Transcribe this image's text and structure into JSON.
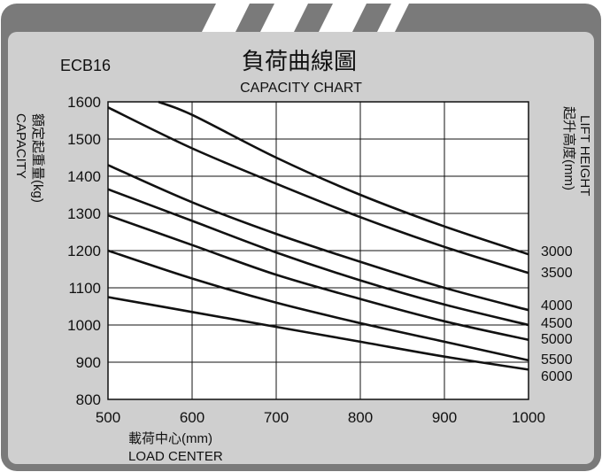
{
  "model": "ECB16",
  "title_cn": "負荷曲線圖",
  "title_en": "CAPACITY CHART",
  "ylabel_cn": "額定起重量(kg)",
  "ylabel_en": "CAPACITY",
  "xlabel_cn": "載荷中心(mm)",
  "xlabel_en": "LOAD CENTER",
  "right_label_en": "LIFT HEIGHT",
  "right_label_cn": "起升高度(mm)",
  "colors": {
    "frame": "#7a7a7a",
    "panel": "#cfcfcf",
    "plot_bg": "#ffffff",
    "line": "#111111",
    "stripe": "#ffffff"
  },
  "chart_data": {
    "type": "line",
    "title": "負荷曲線圖",
    "subtitle": "CAPACITY CHART",
    "xlabel": "載荷中心(mm)",
    "ylabel": "額定起重量(kg)",
    "xlim": [
      500,
      1000
    ],
    "ylim": [
      800,
      1600
    ],
    "x_ticks": [
      500,
      600,
      700,
      800,
      900,
      1000
    ],
    "y_ticks": [
      800,
      900,
      1000,
      1100,
      1200,
      1300,
      1400,
      1500,
      1600
    ],
    "grid": true,
    "series": [
      {
        "name": "3000",
        "x": [
          560,
          600,
          700,
          800,
          900,
          1000
        ],
        "y": [
          1600,
          1565,
          1450,
          1350,
          1265,
          1190
        ]
      },
      {
        "name": "3500",
        "x": [
          500,
          600,
          700,
          800,
          900,
          1000
        ],
        "y": [
          1585,
          1475,
          1380,
          1290,
          1210,
          1140
        ]
      },
      {
        "name": "4000",
        "x": [
          500,
          600,
          700,
          800,
          900,
          1000
        ],
        "y": [
          1430,
          1330,
          1245,
          1170,
          1100,
          1040
        ]
      },
      {
        "name": "4500",
        "x": [
          500,
          600,
          700,
          800,
          900,
          1000
        ],
        "y": [
          1365,
          1280,
          1195,
          1120,
          1055,
          1000
        ]
      },
      {
        "name": "5000",
        "x": [
          500,
          600,
          700,
          800,
          900,
          1000
        ],
        "y": [
          1295,
          1215,
          1135,
          1070,
          1010,
          960
        ]
      },
      {
        "name": "5500",
        "x": [
          500,
          600,
          700,
          800,
          900,
          1000
        ],
        "y": [
          1200,
          1125,
          1060,
          1005,
          955,
          905
        ]
      },
      {
        "name": "6000",
        "x": [
          500,
          600,
          700,
          800,
          900,
          1000
        ],
        "y": [
          1075,
          1035,
          995,
          955,
          915,
          880
        ]
      }
    ]
  }
}
